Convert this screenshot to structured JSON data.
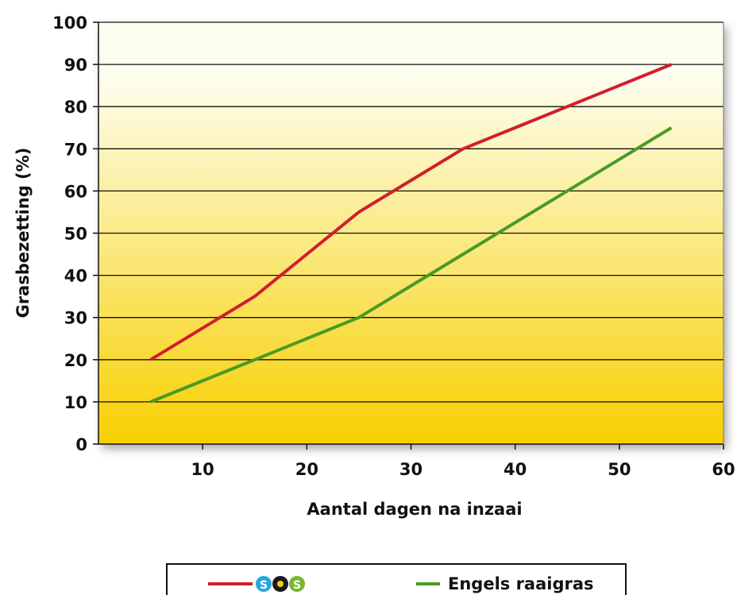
{
  "chart_data": {
    "type": "line",
    "title": "",
    "xlabel": "Aantal dagen na inzaai",
    "ylabel": "Grasbezetting (%)",
    "xlim": [
      0,
      60
    ],
    "ylim": [
      0,
      100
    ],
    "x_ticks": [
      10,
      20,
      30,
      40,
      50,
      60
    ],
    "y_ticks": [
      0,
      10,
      20,
      30,
      40,
      50,
      60,
      70,
      80,
      90,
      100
    ],
    "grid": "horizontal",
    "legend_position": "bottom",
    "series": [
      {
        "name": "SOS",
        "legend_logo": "SOS",
        "color": "#d01f2c",
        "points": [
          [
            5,
            20
          ],
          [
            15,
            35
          ],
          [
            25,
            55
          ],
          [
            35,
            70
          ],
          [
            45,
            80
          ],
          [
            55,
            90
          ]
        ]
      },
      {
        "name": "Engels raaigras",
        "color": "#4a9a27",
        "points": [
          [
            5,
            10
          ],
          [
            15,
            20
          ],
          [
            25,
            30
          ],
          [
            35,
            45
          ],
          [
            45,
            60
          ],
          [
            55,
            75
          ]
        ]
      }
    ]
  },
  "colors": {
    "plot_top": "#fefef0",
    "plot_bottom": "#f7d000",
    "gridline": "#111111",
    "logo_blue": "#2aa6dd",
    "logo_dark": "#1a1a1a",
    "logo_green": "#7ab534"
  }
}
